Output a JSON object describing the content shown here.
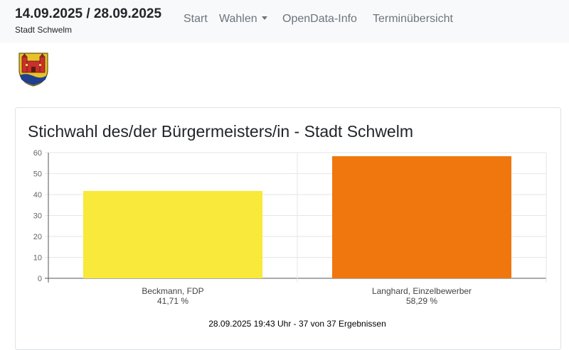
{
  "header": {
    "title": "14.09.2025 / 28.09.2025",
    "subtitle": "Stadt Schwelm",
    "nav": {
      "start": "Start",
      "wahlen": "Wahlen",
      "opendata": "OpenData-Info",
      "termine": "Terminübersicht"
    }
  },
  "logo": {
    "icon": "coat-of-arms-icon"
  },
  "chart_data": {
    "type": "bar",
    "title": "Stichwahl des/der Bürgermeisters/in - Stadt Schwelm",
    "categories": [
      "Beckmann, FDP",
      "Langhard, Einzelbewerber"
    ],
    "value_labels": [
      "41,71 %",
      "58,29 %"
    ],
    "values": [
      41.71,
      58.29
    ],
    "colors": [
      "#f8e93a",
      "#ef770e"
    ],
    "ylim": [
      0,
      60
    ],
    "yticks": [
      0,
      10,
      20,
      30,
      40,
      50,
      60
    ],
    "grid": true,
    "footer": "28.09.2025 19:43 Uhr - 37 von 37 Ergebnissen"
  }
}
